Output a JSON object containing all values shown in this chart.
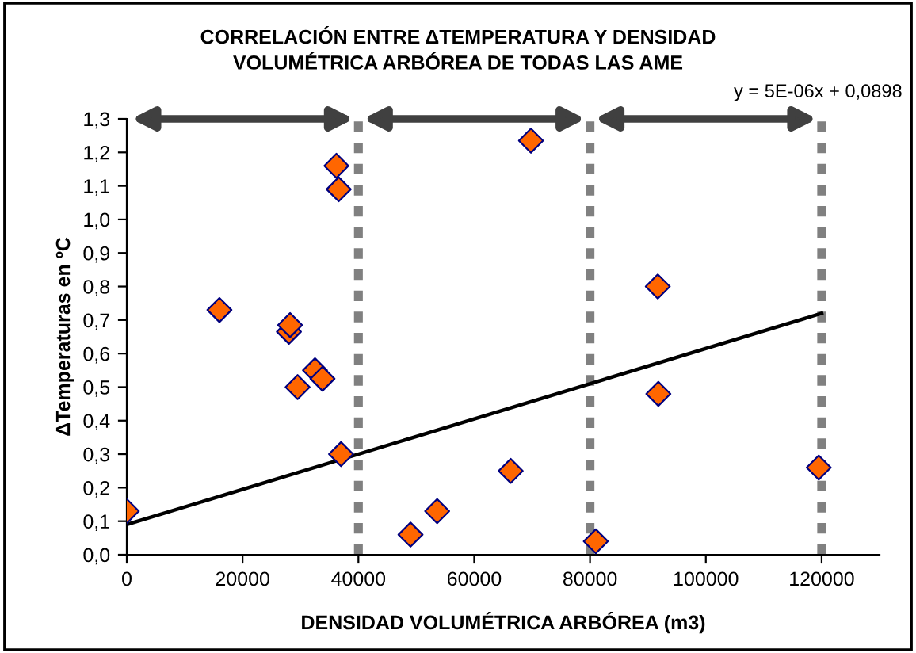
{
  "chart_data": {
    "type": "scatter",
    "title": "CORRELACIÓN ENTRE ΔTEMPERATURA Y DENSIDAD\nVOLUMÉTRICA ARBÓREA DE TODAS LAS AME",
    "xlabel": "DENSIDAD VOLUMÉTRICA ARBÓREA (m3)",
    "ylabel": "ΔTemperaturas en ºC",
    "marker": "diamond",
    "grid": false,
    "legend": false,
    "xlim": [
      0,
      130000
    ],
    "xticks": [
      0,
      20000,
      40000,
      60000,
      80000,
      100000,
      120000
    ],
    "ylim": [
      0,
      1.3
    ],
    "yticks": [
      {
        "value": 0,
        "label": "0,0"
      },
      {
        "value": 0.1,
        "label": "0,1"
      },
      {
        "value": 0.2,
        "label": "0,2"
      },
      {
        "value": 0.3,
        "label": "0,3"
      },
      {
        "value": 0.4,
        "label": "0,4"
      },
      {
        "value": 0.5,
        "label": "0,5"
      },
      {
        "value": 0.6,
        "label": "0,6"
      },
      {
        "value": 0.7,
        "label": "0,7"
      },
      {
        "value": 0.8,
        "label": "0,8"
      },
      {
        "value": 0.9,
        "label": "0,9"
      },
      {
        "value": 1.0,
        "label": "1,0"
      },
      {
        "value": 1.1,
        "label": "1,1"
      },
      {
        "value": 1.2,
        "label": "1,2"
      },
      {
        "value": 1.3,
        "label": "1,3"
      }
    ],
    "series": [
      {
        "type": "line",
        "color": "#000000",
        "marker": "none",
        "x": [
          0,
          120000
        ],
        "values": [
          0.09,
          0.72
        ]
      },
      {
        "color": "#ff6600",
        "x": [
          0,
          16000,
          28000,
          28200,
          29500,
          32500,
          33800,
          37000,
          36200,
          36600,
          49000,
          53600,
          66300,
          69800,
          81000,
          91700,
          91800,
          119500
        ],
        "values": [
          0.13,
          0.73,
          0.665,
          0.685,
          0.5,
          0.55,
          0.525,
          0.3,
          1.16,
          1.09,
          0.06,
          0.13,
          0.25,
          1.235,
          0.04,
          0.8,
          0.48,
          0.26
        ]
      }
    ],
    "ref_lines": [
      {
        "axis": "x",
        "value": 40000,
        "color": "#808080",
        "line_style": "dotted"
      },
      {
        "axis": "x",
        "value": 80000,
        "color": "#808080",
        "line_style": "dotted"
      },
      {
        "axis": "x",
        "value": 120000,
        "color": "#808080",
        "line_style": "dotted"
      }
    ],
    "annotations": [
      "y = 5E-06x + 0,0898"
    ]
  }
}
